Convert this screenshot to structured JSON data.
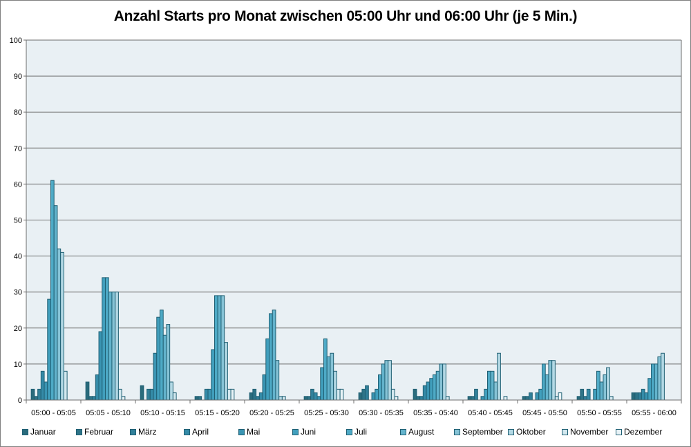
{
  "chart_data": {
    "type": "bar",
    "title": "Anzahl Starts pro Monat zwischen 05:00 Uhr und 06:00 Uhr (je 5 Min.)",
    "xlabel": "",
    "ylabel": "",
    "ylim": [
      0,
      100
    ],
    "yticks": [
      0,
      10,
      20,
      30,
      40,
      50,
      60,
      70,
      80,
      90,
      100
    ],
    "grid": true,
    "legend_position": "bottom",
    "categories": [
      "05:00 - 05:05",
      "05:05 - 05:10",
      "05:10 - 05:15",
      "05:15 - 05:20",
      "05:20 - 05:25",
      "05:25 - 05:30",
      "05:30 - 05:35",
      "05:35 - 05:40",
      "05:40 - 05:45",
      "05:45 - 05:50",
      "05:50 - 05:55",
      "05:55 - 06:00"
    ],
    "series": [
      {
        "name": "Januar",
        "color": "#2a6b7c",
        "values": [
          3,
          5,
          4,
          1,
          2,
          1,
          2,
          3,
          1,
          1,
          1,
          2
        ]
      },
      {
        "name": "Februar",
        "color": "#2e7488",
        "values": [
          1,
          1,
          0,
          1,
          3,
          1,
          3,
          1,
          1,
          1,
          3,
          2
        ]
      },
      {
        "name": "März",
        "color": "#31809a",
        "values": [
          3,
          1,
          3,
          0,
          1,
          3,
          4,
          1,
          3,
          2,
          1,
          2
        ]
      },
      {
        "name": "April",
        "color": "#358ba8",
        "values": [
          8,
          7,
          3,
          3,
          2,
          2,
          0,
          4,
          0,
          0,
          3,
          3
        ]
      },
      {
        "name": "Mai",
        "color": "#3a95b3",
        "values": [
          5,
          19,
          13,
          3,
          7,
          1,
          2,
          5,
          1,
          2,
          0,
          2
        ]
      },
      {
        "name": "Juni",
        "color": "#419fbd",
        "values": [
          28,
          34,
          23,
          14,
          17,
          9,
          3,
          6,
          3,
          3,
          3,
          6
        ]
      },
      {
        "name": "Juli",
        "color": "#4eaac6",
        "values": [
          61,
          34,
          25,
          29,
          24,
          17,
          7,
          7,
          8,
          10,
          8,
          10
        ]
      },
      {
        "name": "August",
        "color": "#63b3cc",
        "values": [
          54,
          30,
          18,
          29,
          25,
          12,
          10,
          8,
          8,
          7,
          5,
          10
        ]
      },
      {
        "name": "September",
        "color": "#86c3d6",
        "values": [
          42,
          30,
          21,
          29,
          11,
          13,
          11,
          10,
          5,
          11,
          7,
          12
        ]
      },
      {
        "name": "Oktober",
        "color": "#b4d9e5",
        "values": [
          41,
          30,
          5,
          16,
          1,
          8,
          11,
          10,
          13,
          11,
          9,
          13
        ]
      },
      {
        "name": "November",
        "color": "#d3e8ef",
        "values": [
          8,
          3,
          2,
          3,
          1,
          3,
          3,
          1,
          0,
          1,
          1,
          0
        ]
      },
      {
        "name": "Dezember",
        "color": "#e9f3f7",
        "values": [
          0,
          1,
          0,
          3,
          0,
          3,
          1,
          0,
          1,
          2,
          0,
          0
        ]
      }
    ]
  }
}
